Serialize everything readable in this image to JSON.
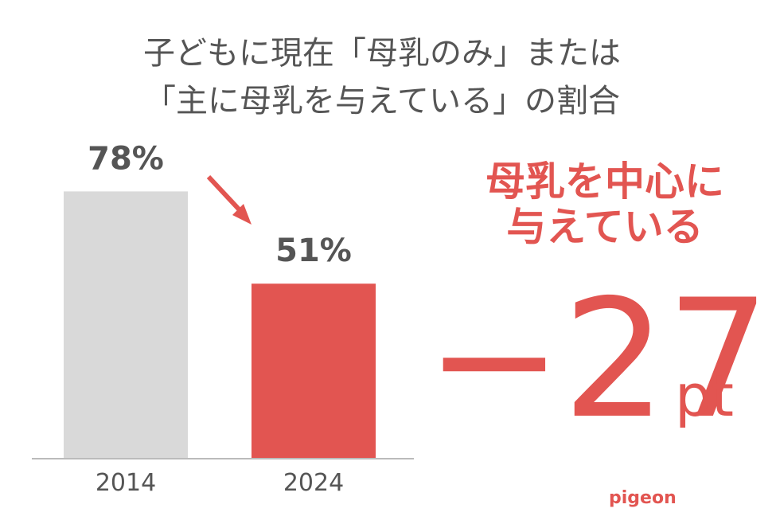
{
  "chart_data": {
    "type": "bar",
    "title": [
      "子どもに現在「母乳のみ」または",
      "「主に母乳を与えている」の割合"
    ],
    "categories": [
      "2014",
      "2024"
    ],
    "values": [
      78,
      51
    ],
    "value_labels": [
      "78%",
      "51%"
    ],
    "colors": [
      "#d9d9d9",
      "#e25551"
    ],
    "ylim": [
      0,
      100
    ],
    "grid": false,
    "annotations": [
      "母乳を中心に",
      "与えている",
      "−27",
      "pt"
    ],
    "logo": "pigeon"
  }
}
